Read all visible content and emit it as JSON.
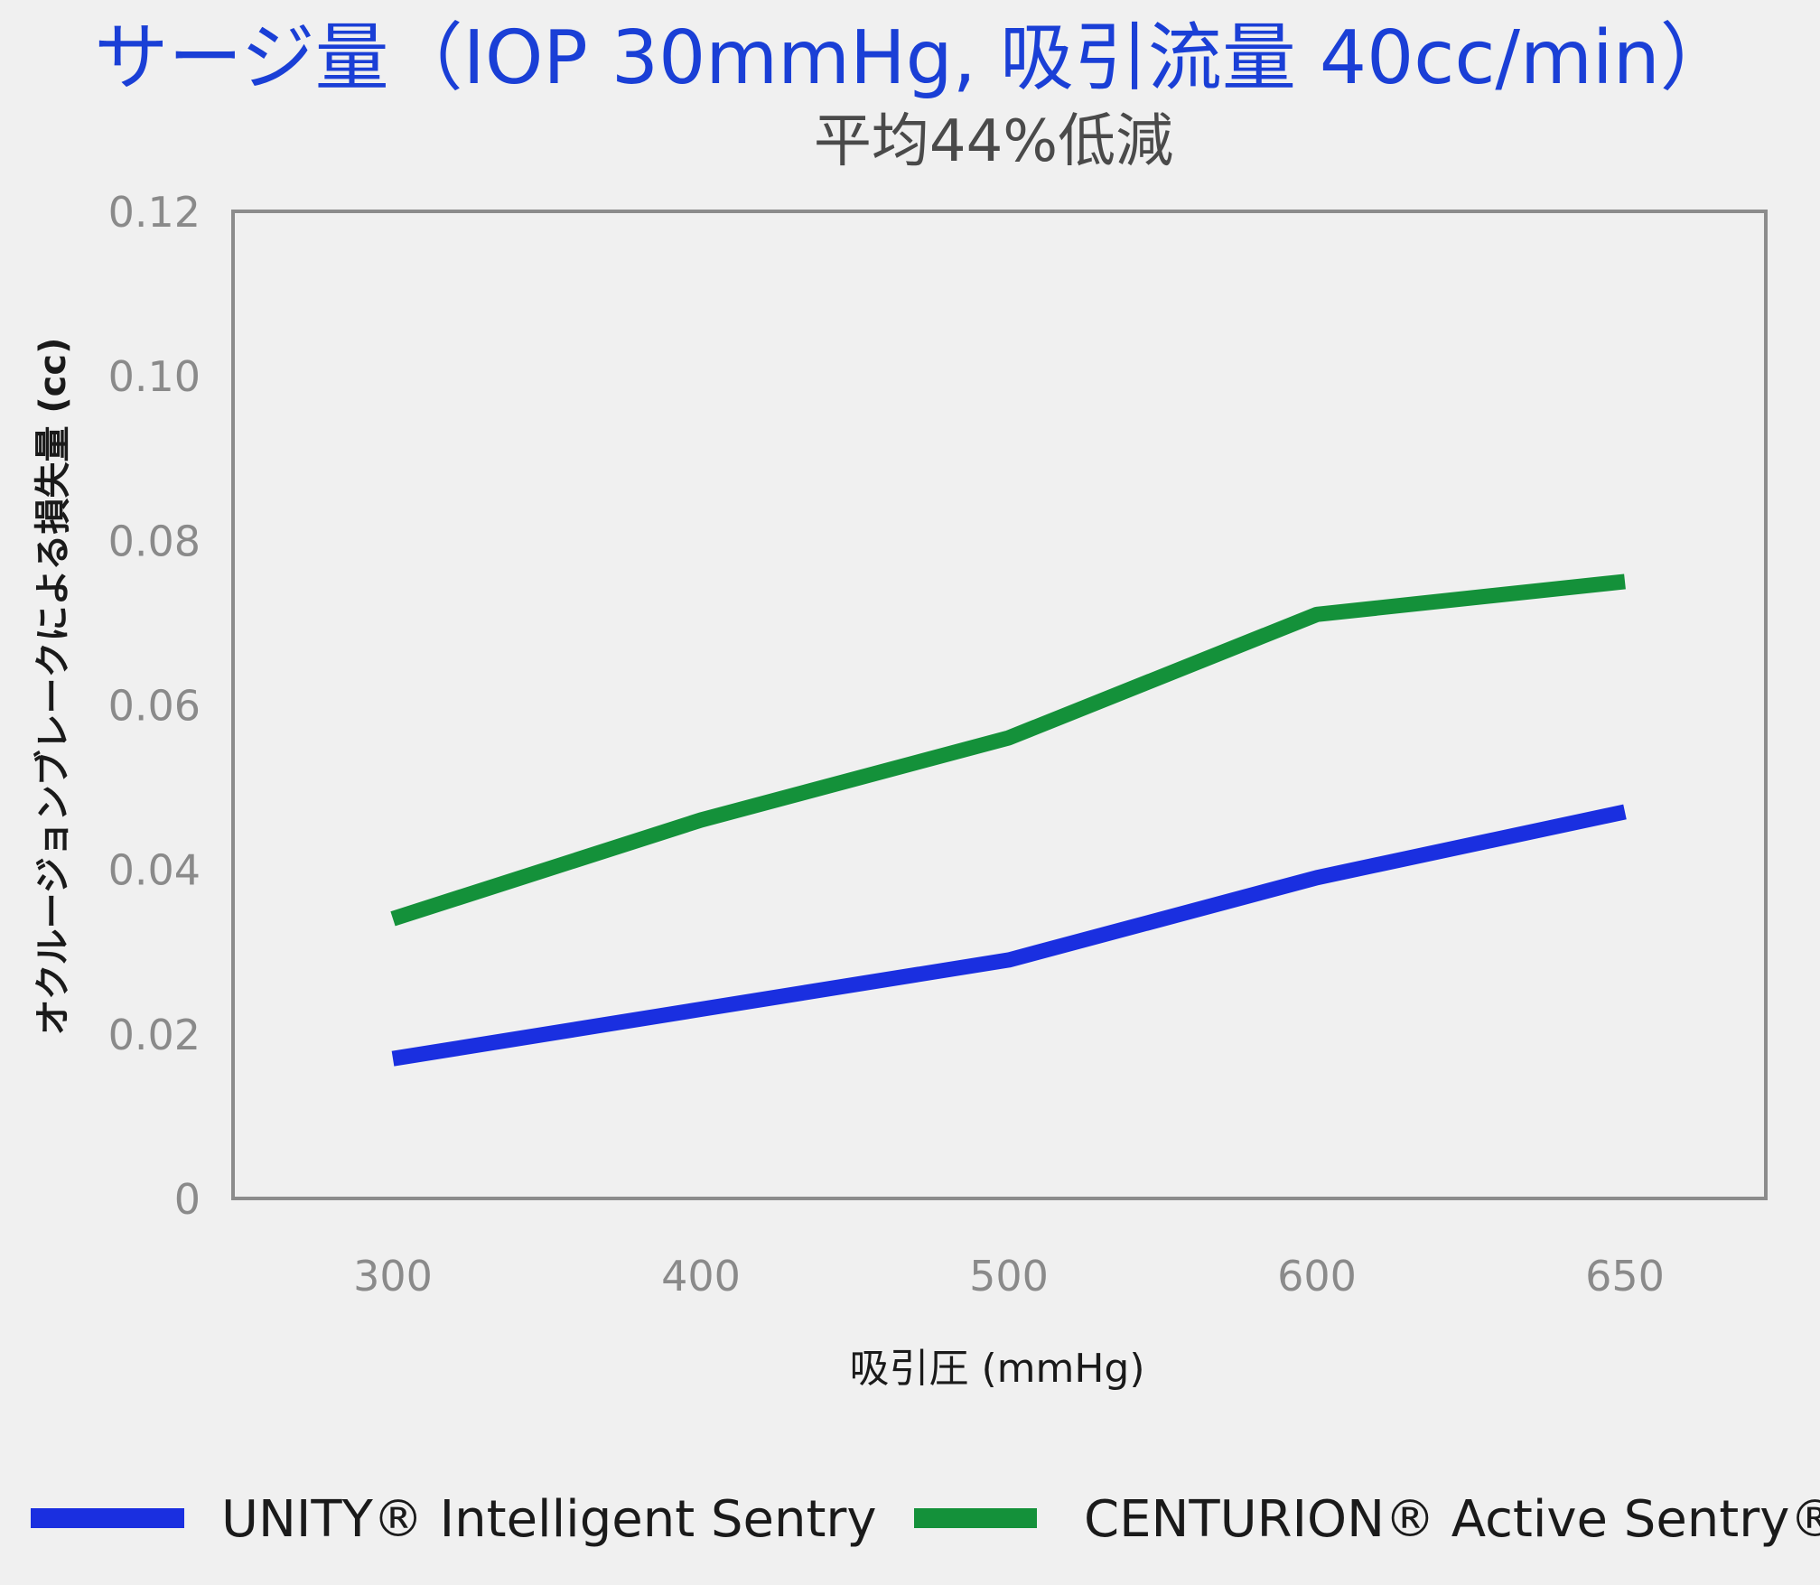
{
  "chart_data": {
    "type": "line",
    "title": "サージ量（IOP 30mmHg, 吸引流量 40cc/min）",
    "subtitle": "平均44%低減",
    "xlabel": "吸引圧 (mmHg)",
    "ylabel": "オクルージョンブレークによる損失量 (cc)",
    "categories": [
      "300",
      "400",
      "500",
      "600",
      "650"
    ],
    "ylim": [
      0,
      0.12
    ],
    "yticks": [
      "0",
      "0.02",
      "0.04",
      "0.06",
      "0.08",
      "0.10",
      "0.12"
    ],
    "grid": false,
    "legend_position": "bottom",
    "series": [
      {
        "name": "UNITY® Intelligent Sentry",
        "color": "#1a2fe0",
        "values": [
          0.017,
          0.023,
          0.029,
          0.039,
          0.047
        ]
      },
      {
        "name": "CENTURION® Active Sentry®",
        "color": "#14913a",
        "values": [
          0.034,
          0.046,
          0.056,
          0.071,
          0.075
        ]
      }
    ]
  }
}
